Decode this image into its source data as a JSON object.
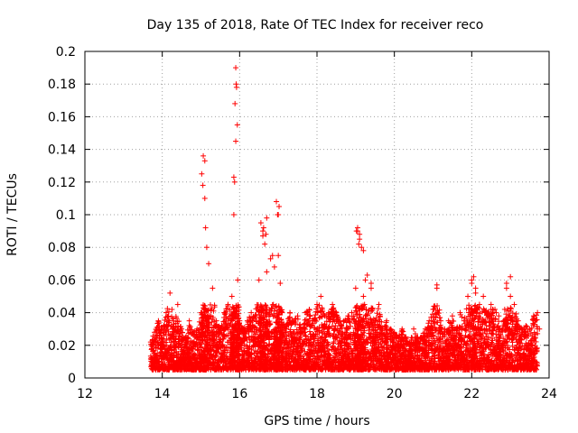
{
  "chart_data": {
    "type": "scatter",
    "title": "Day 135 of 2018, Rate Of TEC Index for receiver reco",
    "xlabel": "GPS time / hours",
    "ylabel": "ROTI / TECUs",
    "xlim": [
      12,
      24
    ],
    "ylim": [
      0,
      0.2
    ],
    "x_ticks": [
      12,
      14,
      16,
      18,
      20,
      22,
      24
    ],
    "x_tick_labels": [
      "12",
      "14",
      "16",
      "18",
      "20",
      "22",
      "24"
    ],
    "y_ticks": [
      0,
      0.02,
      0.04,
      0.06,
      0.08,
      0.1,
      0.12,
      0.14,
      0.16,
      0.18,
      0.2
    ],
    "y_tick_labels": [
      "0",
      "0.02",
      "0.04",
      "0.06",
      "0.08",
      "0.1",
      "0.12",
      "0.14",
      "0.16",
      "0.18",
      "0.2"
    ],
    "grid": true,
    "marker": "+",
    "marker_color": "#ff0000",
    "series": [
      {
        "name": "ROTI",
        "x": [
          13.7,
          13.8,
          13.9,
          14.0,
          14.1,
          14.2,
          14.3,
          14.4,
          14.5,
          14.6,
          14.7,
          14.8,
          14.9,
          15.0,
          15.05,
          15.1,
          15.15,
          15.2,
          15.3,
          15.4,
          15.5,
          15.6,
          15.7,
          15.8,
          15.85,
          15.9,
          15.95,
          16.0,
          16.1,
          16.2,
          16.3,
          16.4,
          16.5,
          16.55,
          16.6,
          16.65,
          16.7,
          16.8,
          16.9,
          16.95,
          17.0,
          17.05,
          17.1,
          17.2,
          17.3,
          17.4,
          17.5,
          17.6,
          17.7,
          17.8,
          17.9,
          18.0,
          18.1,
          18.2,
          18.3,
          18.4,
          18.5,
          18.6,
          18.7,
          18.8,
          18.9,
          19.0,
          19.05,
          19.1,
          19.15,
          19.2,
          19.3,
          19.4,
          19.5,
          19.6,
          19.7,
          19.8,
          19.9,
          20.0,
          20.1,
          20.2,
          20.3,
          20.4,
          20.5,
          20.6,
          20.7,
          20.8,
          20.9,
          21.0,
          21.1,
          21.2,
          21.3,
          21.4,
          21.5,
          21.6,
          21.7,
          21.8,
          21.9,
          22.0,
          22.05,
          22.1,
          22.2,
          22.3,
          22.4,
          22.5,
          22.6,
          22.7,
          22.8,
          22.9,
          23.0,
          23.1,
          23.2,
          23.3,
          23.4,
          23.5,
          23.6,
          23.7,
          23.75,
          15.1,
          15.88,
          15.9,
          15.92,
          15.94,
          16.6,
          16.7,
          17.0,
          16.85,
          19.05,
          19.1,
          19.2,
          21.1,
          22.0,
          22.1,
          22.9,
          23.0,
          14.1,
          14.3,
          16.2,
          17.3,
          18.3,
          18.9,
          20.3,
          21.5,
          22.4,
          23.4,
          13.8,
          14.5,
          15.3,
          16.4,
          17.6,
          18.6,
          19.6,
          20.8,
          21.8,
          22.7,
          23.6,
          15.02,
          15.06,
          15.12,
          15.85,
          15.87,
          15.91,
          16.62,
          16.68,
          16.98,
          17.02,
          19.02,
          19.08,
          19.25,
          19.4
        ],
        "y": [
          0.022,
          0.028,
          0.035,
          0.03,
          0.04,
          0.052,
          0.033,
          0.045,
          0.03,
          0.025,
          0.035,
          0.028,
          0.03,
          0.04,
          0.118,
          0.133,
          0.08,
          0.07,
          0.055,
          0.035,
          0.03,
          0.04,
          0.045,
          0.05,
          0.123,
          0.145,
          0.06,
          0.035,
          0.03,
          0.035,
          0.04,
          0.038,
          0.06,
          0.095,
          0.087,
          0.082,
          0.065,
          0.073,
          0.068,
          0.108,
          0.075,
          0.058,
          0.04,
          0.032,
          0.04,
          0.035,
          0.038,
          0.03,
          0.04,
          0.042,
          0.035,
          0.045,
          0.05,
          0.038,
          0.04,
          0.045,
          0.04,
          0.035,
          0.035,
          0.038,
          0.04,
          0.055,
          0.092,
          0.088,
          0.08,
          0.05,
          0.063,
          0.055,
          0.035,
          0.045,
          0.03,
          0.035,
          0.03,
          0.028,
          0.025,
          0.03,
          0.025,
          0.022,
          0.03,
          0.025,
          0.025,
          0.03,
          0.035,
          0.042,
          0.057,
          0.035,
          0.03,
          0.035,
          0.038,
          0.03,
          0.04,
          0.035,
          0.05,
          0.058,
          0.062,
          0.055,
          0.045,
          0.05,
          0.04,
          0.045,
          0.042,
          0.038,
          0.03,
          0.058,
          0.062,
          0.045,
          0.035,
          0.03,
          0.032,
          0.03,
          0.038,
          0.04,
          0.03,
          0.11,
          0.168,
          0.19,
          0.178,
          0.155,
          0.09,
          0.098,
          0.1,
          0.075,
          0.09,
          0.085,
          0.078,
          0.055,
          0.06,
          0.052,
          0.055,
          0.05,
          0.012,
          0.01,
          0.015,
          0.008,
          0.012,
          0.01,
          0.012,
          0.008,
          0.01,
          0.012,
          0.015,
          0.01,
          0.008,
          0.012,
          0.01,
          0.015,
          0.01,
          0.012,
          0.01,
          0.015,
          0.01,
          0.125,
          0.136,
          0.092,
          0.1,
          0.12,
          0.18,
          0.092,
          0.088,
          0.1,
          0.105,
          0.09,
          0.082,
          0.06,
          0.058
        ]
      }
    ]
  }
}
